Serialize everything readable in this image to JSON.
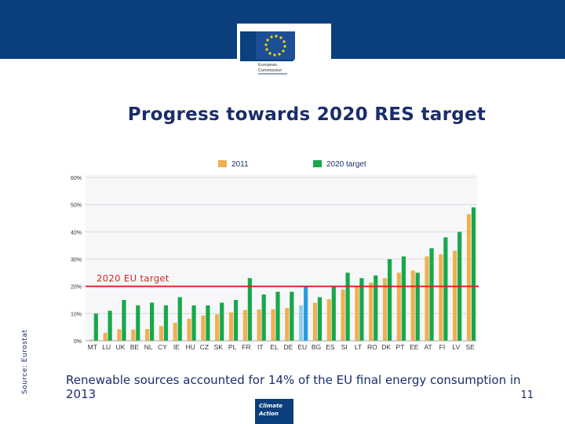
{
  "slide": {
    "title": "Progress towards 2020 RES target",
    "source": "Source: Eurostat",
    "caption": "Renewable sources accounted for 14% of the EU final energy consumption in 2013",
    "page_number": "11"
  },
  "logo": {
    "line1": "European",
    "line2": "Commission"
  },
  "climate_action": {
    "line1": "Climate",
    "line2": "Action"
  },
  "colors": {
    "header": "#0b3f7d",
    "title": "#1a2d6b",
    "series_2011": "#f0b050",
    "series_target": "#17a84a",
    "eu_2011": "#8fd0e8",
    "eu_target": "#2a9be0",
    "eu_target_line": "#d62020"
  },
  "chart_data": {
    "type": "bar",
    "categories": [
      "MT",
      "LU",
      "UK",
      "BE",
      "NL",
      "CY",
      "IE",
      "HU",
      "CZ",
      "SK",
      "PL",
      "FR",
      "IT",
      "EL",
      "DE",
      "EU",
      "BG",
      "ES",
      "SI",
      "LT",
      "RO",
      "DK",
      "PT",
      "EE",
      "AT",
      "FI",
      "LV",
      "SE"
    ],
    "series": [
      {
        "name": "2011",
        "values": [
          0.4,
          2.9,
          4.2,
          4.1,
          4.3,
          5.4,
          6.6,
          8.1,
          9.3,
          9.7,
          10.4,
          11.3,
          11.5,
          11.6,
          12.1,
          13.0,
          14.0,
          15.3,
          18.8,
          20.2,
          21.4,
          23.0,
          25.0,
          25.8,
          31.0,
          31.8,
          33.1,
          46.5
        ]
      },
      {
        "name": "2020 target",
        "values": [
          10,
          11,
          15,
          13,
          14,
          13,
          16,
          13,
          13,
          14,
          15,
          23,
          17,
          18,
          18,
          20,
          16,
          20,
          25,
          23,
          24,
          30,
          31,
          25,
          34,
          38,
          40,
          49
        ]
      }
    ],
    "highlight_category": "EU",
    "yticks": [
      "0%",
      "10%",
      "20%",
      "30%",
      "40%",
      "50%",
      "60%"
    ],
    "ylim": [
      0,
      60
    ],
    "reference_line": {
      "label": "2020 EU target",
      "value": 20
    },
    "legend": [
      "2011",
      "2020 target"
    ],
    "legend_position": "top"
  }
}
